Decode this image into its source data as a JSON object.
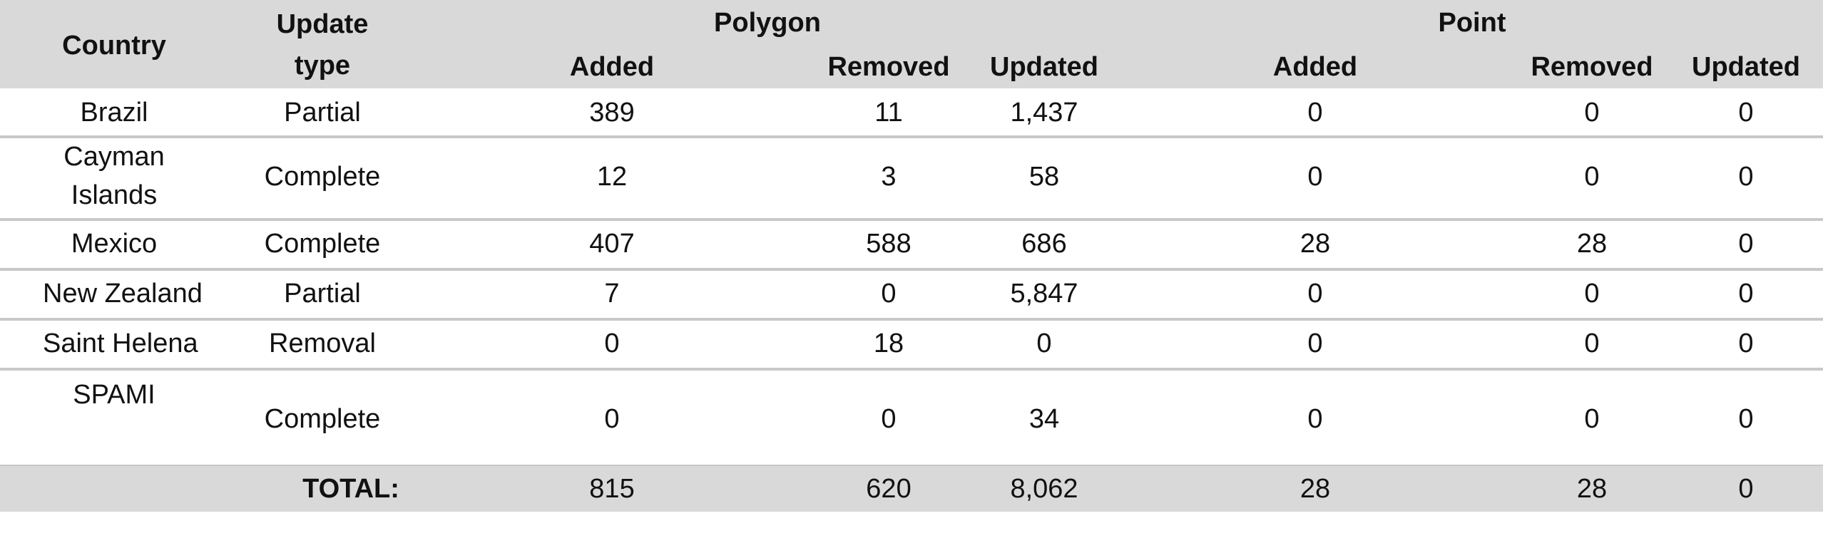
{
  "headers": {
    "country": "Country",
    "update_type_line1": "Update",
    "update_type_line2": "type",
    "polygon": "Polygon",
    "point": "Point",
    "poly_added": "Added",
    "poly_removed": "Removed",
    "poly_updated": "Updated",
    "point_added": "Added",
    "point_removed": "Removed",
    "point_updated": "Updated"
  },
  "rows": [
    {
      "country": "Brazil",
      "country_line2": "",
      "type": "Partial",
      "poly_added": "389",
      "poly_removed": "11",
      "poly_updated": "1,437",
      "point_added": "0",
      "point_removed": "0",
      "point_updated": "0"
    },
    {
      "country": "Cayman",
      "country_line2": "Islands",
      "type": "Complete",
      "poly_added": "12",
      "poly_removed": "3",
      "poly_updated": "58",
      "point_added": "0",
      "point_removed": "0",
      "point_updated": "0"
    },
    {
      "country": "Mexico",
      "country_line2": "",
      "type": "Complete",
      "poly_added": "407",
      "poly_removed": "588",
      "poly_updated": "686",
      "point_added": "28",
      "point_removed": "28",
      "point_updated": "0"
    },
    {
      "country": "New Zealand",
      "country_line2": "",
      "type": "Partial",
      "poly_added": "7",
      "poly_removed": "0",
      "poly_updated": "5,847",
      "point_added": "0",
      "point_removed": "0",
      "point_updated": "0"
    },
    {
      "country": "Saint Helena",
      "country_line2": "",
      "type": "Removal",
      "poly_added": "0",
      "poly_removed": "18",
      "poly_updated": "0",
      "point_added": "0",
      "point_removed": "0",
      "point_updated": "0"
    },
    {
      "country": "SPAMI",
      "country_line2": "",
      "type": "Complete",
      "poly_added": "0",
      "poly_removed": "0",
      "poly_updated": "34",
      "point_added": "0",
      "point_removed": "0",
      "point_updated": "0"
    }
  ],
  "total": {
    "label": "TOTAL:",
    "poly_added": "815",
    "poly_removed": "620",
    "poly_updated": "8,062",
    "point_added": "28",
    "point_removed": "28",
    "point_updated": "0"
  }
}
